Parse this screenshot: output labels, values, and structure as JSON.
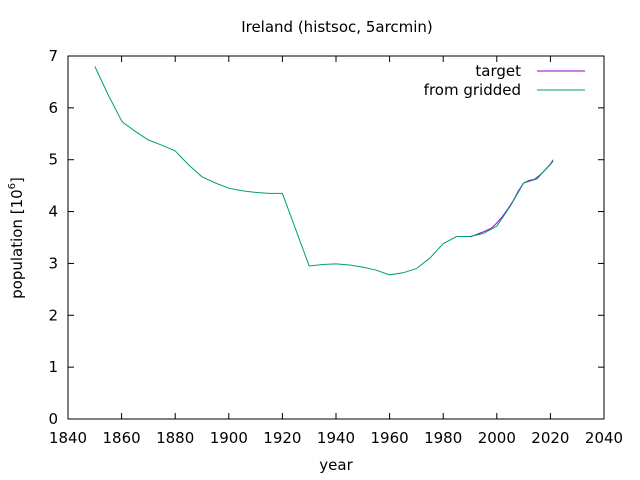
{
  "chart_data": {
    "type": "line",
    "title": "Ireland (histsoc, 5arcmin)",
    "xlabel": "year",
    "ylabel": "population [10",
    "ylabel_superscript": "6",
    "ylabel_suffix": "]",
    "xlim": [
      1840,
      2040
    ],
    "ylim": [
      0,
      7
    ],
    "xticks": [
      1840,
      1860,
      1880,
      1900,
      1920,
      1940,
      1960,
      1980,
      2000,
      2020,
      2040
    ],
    "yticks": [
      0,
      1,
      2,
      3,
      4,
      5,
      6,
      7
    ],
    "grid": false,
    "legend_position": "top-right",
    "series": [
      {
        "name": "target",
        "color": "#9400d3",
        "x": [
          1990,
          1992,
          1995,
          1998,
          2000,
          2002,
          2004,
          2006,
          2008,
          2010,
          2012,
          2014,
          2016,
          2018,
          2020,
          2021
        ],
        "y": [
          3.51,
          3.55,
          3.61,
          3.68,
          3.78,
          3.9,
          4.04,
          4.2,
          4.39,
          4.55,
          4.6,
          4.62,
          4.7,
          4.8,
          4.91,
          4.98
        ]
      },
      {
        "name": "from gridded",
        "color": "#009e73",
        "x": [
          1850,
          1855,
          1860,
          1861,
          1865,
          1870,
          1875,
          1880,
          1885,
          1890,
          1895,
          1900,
          1905,
          1910,
          1915,
          1920,
          1925,
          1930,
          1935,
          1940,
          1945,
          1950,
          1955,
          1960,
          1965,
          1970,
          1975,
          1980,
          1985,
          1990,
          1995,
          2000,
          2005,
          2010,
          2015,
          2020,
          2021
        ],
        "y": [
          6.8,
          6.25,
          5.75,
          5.7,
          5.55,
          5.38,
          5.28,
          5.17,
          4.9,
          4.67,
          4.55,
          4.45,
          4.4,
          4.37,
          4.35,
          4.35,
          3.65,
          2.95,
          2.98,
          2.99,
          2.97,
          2.93,
          2.87,
          2.78,
          2.82,
          2.9,
          3.1,
          3.38,
          3.52,
          3.52,
          3.58,
          3.72,
          4.1,
          4.55,
          4.63,
          4.92,
          5.0
        ]
      }
    ]
  }
}
